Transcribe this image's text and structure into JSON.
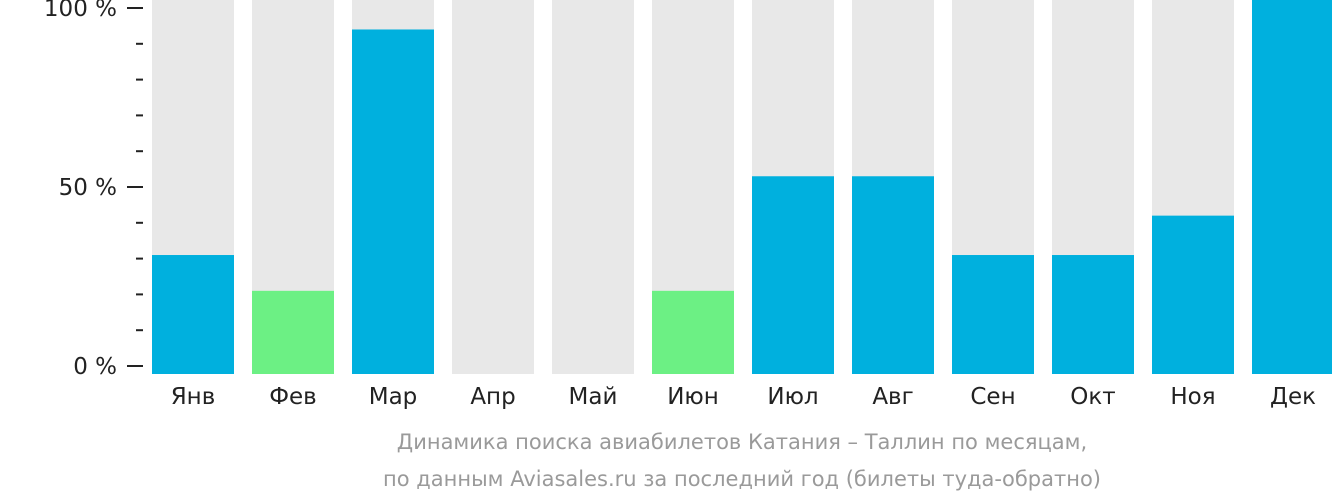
{
  "chart_data": {
    "type": "bar",
    "categories": [
      "Янв",
      "Фев",
      "Мар",
      "Апр",
      "Май",
      "Июн",
      "Июл",
      "Авг",
      "Сен",
      "Окт",
      "Ноя",
      "Дек"
    ],
    "values": [
      31,
      21,
      94,
      0,
      0,
      21,
      53,
      53,
      31,
      31,
      42,
      100
    ],
    "bar_highlight": [
      "normal",
      "low",
      "normal",
      "normal",
      "normal",
      "low",
      "normal",
      "normal",
      "normal",
      "normal",
      "normal",
      "normal"
    ],
    "ylim": [
      0,
      100
    ],
    "y_ticks": [
      {
        "value": 0,
        "label": "0 %"
      },
      {
        "value": 50,
        "label": "50 %"
      },
      {
        "value": 100,
        "label": "100 %"
      }
    ],
    "y_minor_ticks": [
      10,
      20,
      30,
      40,
      60,
      70,
      80,
      90
    ],
    "colors": {
      "bar": "#00b0de",
      "bar_low": "#6cf084",
      "background_bar": "#e8e8e8",
      "axis": "#222222",
      "caption": "#9a9a9a"
    },
    "caption": {
      "line1": "Динамика поиска авиабилетов Катания – Таллин по месяцам,",
      "line2": "по данным Aviasales.ru за последний год (билеты туда-обратно)"
    }
  }
}
